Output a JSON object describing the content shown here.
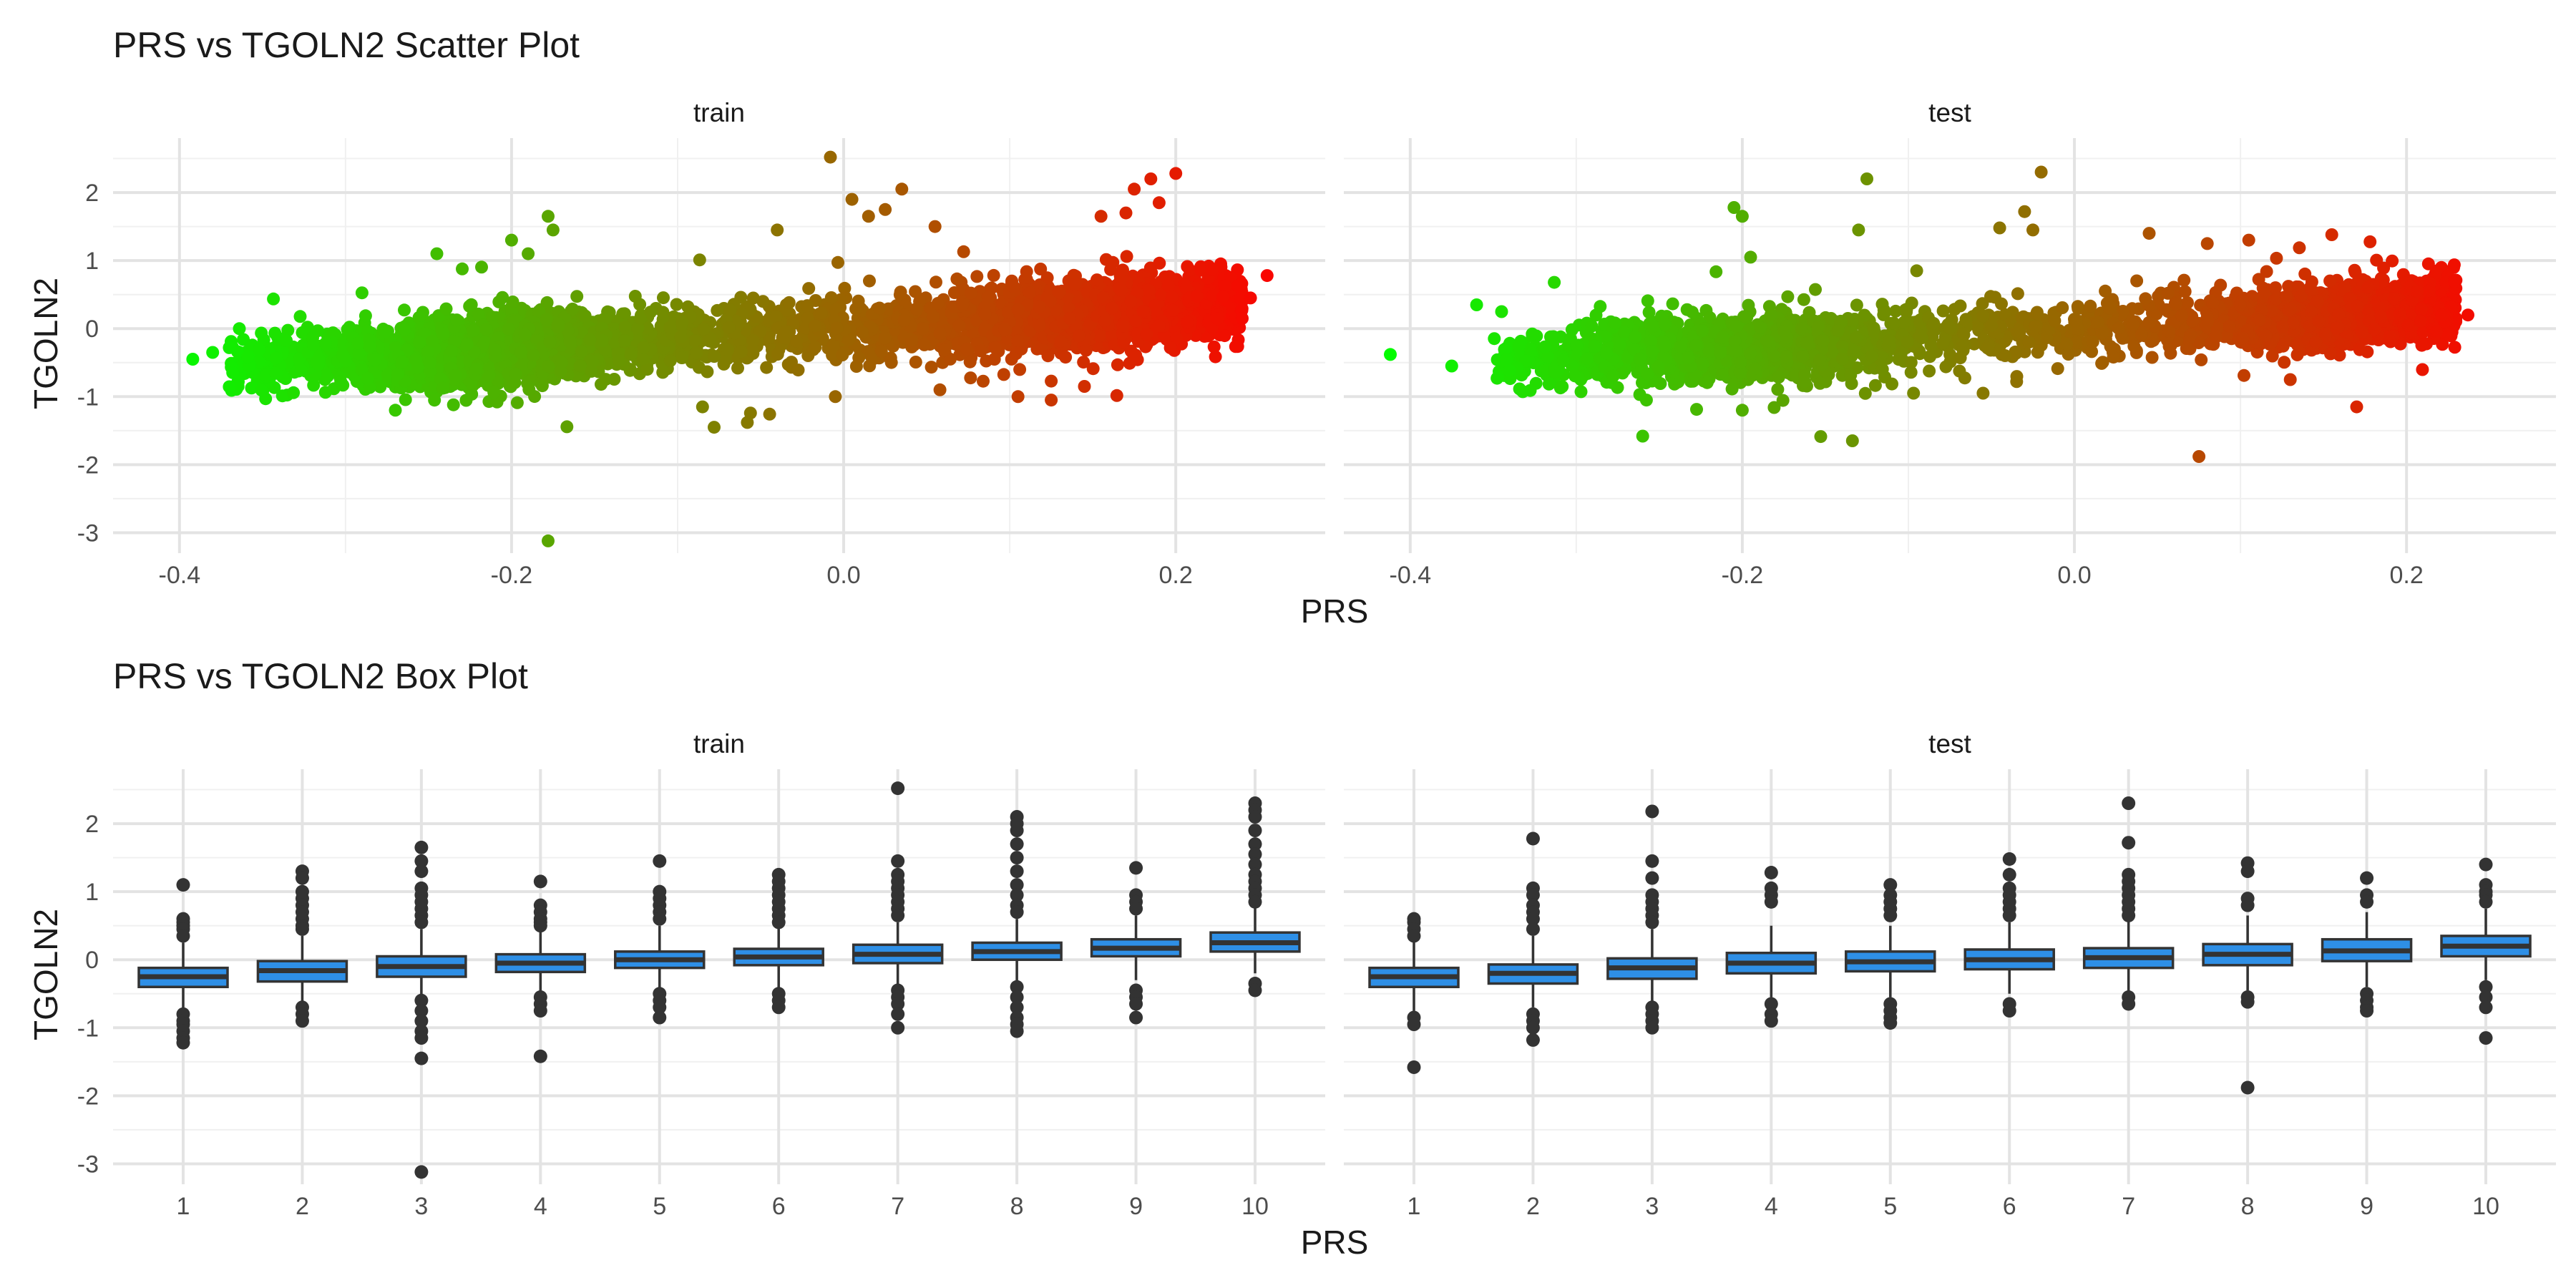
{
  "chart_data": [
    {
      "type": "scatter",
      "title": "PRS vs TGOLN2 Scatter Plot",
      "xlabel": "PRS",
      "ylabel": "TGOLN2",
      "xlim": [
        -0.44,
        0.29
      ],
      "ylim": [
        -3.3,
        2.8
      ],
      "x_ticks": [
        "-0.4",
        "-0.2",
        "0.0",
        "0.2"
      ],
      "y_ticks": [
        "2",
        "1",
        "0",
        "-1",
        "-2",
        "-3"
      ],
      "color_gradient": [
        "#00ff00",
        "#ff0000"
      ],
      "color_by": "PRS",
      "grid": true,
      "facets": [
        {
          "name": "train",
          "bulk_x_range": [
            -0.37,
            0.24
          ],
          "trend": {
            "intercept": 0.0,
            "slope": 1.6
          },
          "outliers": [
            {
              "x": -0.392,
              "y": -0.45
            },
            {
              "x": -0.38,
              "y": -0.35
            },
            {
              "x": -0.37,
              "y": -0.28
            },
            {
              "x": -0.245,
              "y": 1.1
            },
            {
              "x": -0.2,
              "y": 1.3
            },
            {
              "x": -0.178,
              "y": 1.65
            },
            {
              "x": -0.175,
              "y": 1.45
            },
            {
              "x": -0.19,
              "y": 1.1
            },
            {
              "x": -0.178,
              "y": -3.12
            },
            {
              "x": -0.27,
              "y": -1.2
            },
            {
              "x": -0.235,
              "y": -1.12
            },
            {
              "x": -0.085,
              "y": -1.15
            },
            {
              "x": -0.078,
              "y": -1.45
            },
            {
              "x": -0.058,
              "y": -1.38
            },
            {
              "x": -0.04,
              "y": 1.45
            },
            {
              "x": -0.008,
              "y": 2.52
            },
            {
              "x": 0.005,
              "y": 1.9
            },
            {
              "x": 0.015,
              "y": 1.65
            },
            {
              "x": 0.035,
              "y": 2.05
            },
            {
              "x": 0.025,
              "y": 1.75
            },
            {
              "x": 0.055,
              "y": 1.5
            },
            {
              "x": 0.058,
              "y": -0.9
            },
            {
              "x": -0.005,
              "y": -1.0
            },
            {
              "x": 0.105,
              "y": -1.0
            },
            {
              "x": 0.125,
              "y": -1.05
            },
            {
              "x": 0.145,
              "y": -0.85
            },
            {
              "x": 0.175,
              "y": 2.05
            },
            {
              "x": 0.185,
              "y": 2.2
            },
            {
              "x": 0.2,
              "y": 2.28
            },
            {
              "x": 0.17,
              "y": 1.7
            },
            {
              "x": 0.19,
              "y": 1.85
            },
            {
              "x": 0.155,
              "y": 1.65
            },
            {
              "x": 0.255,
              "y": 0.78
            },
            {
              "x": 0.245,
              "y": 0.45
            },
            {
              "x": 0.24,
              "y": 0.15
            }
          ]
        },
        {
          "name": "test",
          "bulk_x_range": [
            -0.35,
            0.23
          ],
          "trend": {
            "intercept": 0.0,
            "slope": 1.55
          },
          "outliers": [
            {
              "x": -0.412,
              "y": -0.38
            },
            {
              "x": -0.375,
              "y": -0.55
            },
            {
              "x": -0.36,
              "y": 0.35
            },
            {
              "x": -0.345,
              "y": 0.25
            },
            {
              "x": -0.26,
              "y": -1.58
            },
            {
              "x": -0.2,
              "y": -1.2
            },
            {
              "x": -0.205,
              "y": 1.78
            },
            {
              "x": -0.2,
              "y": 1.65
            },
            {
              "x": -0.195,
              "y": 1.05
            },
            {
              "x": -0.125,
              "y": 2.2
            },
            {
              "x": -0.13,
              "y": 1.45
            },
            {
              "x": -0.095,
              "y": 0.85
            },
            {
              "x": -0.02,
              "y": 2.3
            },
            {
              "x": -0.03,
              "y": 1.72
            },
            {
              "x": -0.045,
              "y": 1.48
            },
            {
              "x": -0.025,
              "y": 1.45
            },
            {
              "x": 0.045,
              "y": 1.4
            },
            {
              "x": 0.08,
              "y": 1.25
            },
            {
              "x": 0.105,
              "y": 1.3
            },
            {
              "x": 0.155,
              "y": 1.38
            },
            {
              "x": 0.075,
              "y": -1.88
            },
            {
              "x": 0.17,
              "y": -1.15
            },
            {
              "x": 0.13,
              "y": -0.75
            },
            {
              "x": 0.237,
              "y": 0.2
            }
          ]
        }
      ]
    },
    {
      "type": "box",
      "title": "PRS vs TGOLN2 Box Plot",
      "xlabel": "PRS",
      "ylabel": "TGOLN2",
      "categories": [
        "1",
        "2",
        "3",
        "4",
        "5",
        "6",
        "7",
        "8",
        "9",
        "10"
      ],
      "ylim": [
        -3.3,
        2.8
      ],
      "y_ticks": [
        "2",
        "1",
        "0",
        "-1",
        "-2",
        "-3"
      ],
      "box_color": "#2e8fe6",
      "grid": true,
      "facets": [
        {
          "name": "train",
          "boxes": [
            {
              "q1": -0.4,
              "median": -0.25,
              "q3": -0.12,
              "whisker_low": -0.75,
              "whisker_high": 0.25,
              "outliers": [
                1.1,
                0.6,
                0.55,
                0.5,
                0.45,
                0.35,
                -0.8,
                -0.9,
                -0.95,
                -1.05,
                -1.15,
                -1.22
              ]
            },
            {
              "q1": -0.32,
              "median": -0.16,
              "q3": -0.02,
              "whisker_low": -0.65,
              "whisker_high": 0.35,
              "outliers": [
                1.3,
                1.2,
                1.0,
                0.9,
                0.8,
                0.7,
                0.6,
                0.5,
                0.45,
                -0.7,
                -0.8,
                -0.9
              ]
            },
            {
              "q1": -0.25,
              "median": -0.1,
              "q3": 0.05,
              "whisker_low": -0.55,
              "whisker_high": 0.45,
              "outliers": [
                1.65,
                1.45,
                1.3,
                1.05,
                0.95,
                0.85,
                0.75,
                0.65,
                0.55,
                -0.6,
                -0.75,
                -0.9,
                -1.05,
                -1.15,
                -1.45,
                -3.12
              ]
            },
            {
              "q1": -0.18,
              "median": -0.05,
              "q3": 0.08,
              "whisker_low": -0.5,
              "whisker_high": 0.45,
              "outliers": [
                1.15,
                0.8,
                0.7,
                0.6,
                0.55,
                0.5,
                -0.55,
                -0.65,
                -0.75,
                -1.42
              ]
            },
            {
              "q1": -0.12,
              "median": 0.0,
              "q3": 0.12,
              "whisker_low": -0.45,
              "whisker_high": 0.5,
              "outliers": [
                1.45,
                1.0,
                0.9,
                0.8,
                0.7,
                0.6,
                -0.5,
                -0.6,
                -0.7,
                -0.85
              ]
            },
            {
              "q1": -0.08,
              "median": 0.04,
              "q3": 0.16,
              "whisker_low": -0.42,
              "whisker_high": 0.5,
              "outliers": [
                1.25,
                1.15,
                1.05,
                0.95,
                0.85,
                0.75,
                0.65,
                0.55,
                -0.5,
                -0.6,
                -0.7
              ]
            },
            {
              "q1": -0.05,
              "median": 0.08,
              "q3": 0.22,
              "whisker_low": -0.4,
              "whisker_high": 0.55,
              "outliers": [
                2.52,
                1.45,
                1.25,
                1.15,
                1.05,
                0.95,
                0.85,
                0.75,
                0.65,
                -0.45,
                -0.55,
                -0.65,
                -0.8,
                -1.0
              ]
            },
            {
              "q1": 0.0,
              "median": 0.12,
              "q3": 0.25,
              "whisker_low": -0.35,
              "whisker_high": 0.6,
              "outliers": [
                2.1,
                2.0,
                1.9,
                1.7,
                1.5,
                1.3,
                1.1,
                0.95,
                0.8,
                0.7,
                -0.4,
                -0.55,
                -0.7,
                -0.85,
                -0.95,
                -1.05
              ]
            },
            {
              "q1": 0.05,
              "median": 0.17,
              "q3": 0.3,
              "whisker_low": -0.3,
              "whisker_high": 0.65,
              "outliers": [
                1.35,
                0.95,
                0.85,
                0.75,
                -0.45,
                -0.55,
                -0.65,
                -0.85
              ]
            },
            {
              "q1": 0.12,
              "median": 0.25,
              "q3": 0.4,
              "whisker_low": -0.2,
              "whisker_high": 0.8,
              "outliers": [
                2.3,
                2.2,
                2.1,
                1.9,
                1.7,
                1.55,
                1.4,
                1.25,
                1.15,
                1.05,
                0.95,
                0.85,
                -0.35,
                -0.45
              ]
            }
          ]
        },
        {
          "name": "test",
          "boxes": [
            {
              "q1": -0.4,
              "median": -0.25,
              "q3": -0.12,
              "whisker_low": -0.75,
              "whisker_high": 0.3,
              "outliers": [
                0.6,
                0.55,
                0.45,
                0.35,
                -0.85,
                -0.95,
                -1.58
              ]
            },
            {
              "q1": -0.35,
              "median": -0.2,
              "q3": -0.07,
              "whisker_low": -0.7,
              "whisker_high": 0.35,
              "outliers": [
                1.78,
                1.05,
                0.95,
                0.8,
                0.7,
                0.6,
                0.45,
                -0.8,
                -0.9,
                -1.0,
                -1.18
              ]
            },
            {
              "q1": -0.28,
              "median": -0.12,
              "q3": 0.02,
              "whisker_low": -0.62,
              "whisker_high": 0.45,
              "outliers": [
                2.18,
                1.45,
                1.2,
                0.95,
                0.85,
                0.75,
                0.65,
                0.55,
                -0.7,
                -0.8,
                -0.9,
                -1.0
              ]
            },
            {
              "q1": -0.2,
              "median": -0.05,
              "q3": 0.1,
              "whisker_low": -0.55,
              "whisker_high": 0.5,
              "outliers": [
                1.28,
                1.05,
                0.95,
                0.85,
                -0.65,
                -0.8,
                -0.9
              ]
            },
            {
              "q1": -0.17,
              "median": -0.03,
              "q3": 0.12,
              "whisker_low": -0.55,
              "whisker_high": 0.5,
              "outliers": [
                1.1,
                0.95,
                0.85,
                0.75,
                0.65,
                -0.65,
                -0.75,
                -0.85,
                -0.93
              ]
            },
            {
              "q1": -0.14,
              "median": 0.0,
              "q3": 0.15,
              "whisker_low": -0.5,
              "whisker_high": 0.55,
              "outliers": [
                1.48,
                1.25,
                1.05,
                0.95,
                0.85,
                0.75,
                0.65,
                -0.65,
                -0.75
              ]
            },
            {
              "q1": -0.12,
              "median": 0.03,
              "q3": 0.17,
              "whisker_low": -0.5,
              "whisker_high": 0.6,
              "outliers": [
                2.3,
                1.72,
                1.25,
                1.15,
                1.05,
                0.95,
                0.85,
                0.75,
                0.65,
                -0.55,
                -0.65
              ]
            },
            {
              "q1": -0.08,
              "median": 0.08,
              "q3": 0.23,
              "whisker_low": -0.45,
              "whisker_high": 0.65,
              "outliers": [
                1.42,
                1.3,
                0.9,
                0.8,
                -0.55,
                -0.62,
                -1.88
              ]
            },
            {
              "q1": -0.02,
              "median": 0.13,
              "q3": 0.3,
              "whisker_low": -0.4,
              "whisker_high": 0.7,
              "outliers": [
                1.2,
                0.95,
                0.85,
                -0.5,
                -0.6,
                -0.7,
                -0.75
              ]
            },
            {
              "q1": 0.05,
              "median": 0.2,
              "q3": 0.35,
              "whisker_low": -0.3,
              "whisker_high": 0.75,
              "outliers": [
                1.4,
                1.1,
                1.0,
                0.95,
                0.85,
                -0.4,
                -0.55,
                -0.7,
                -1.15
              ]
            }
          ]
        }
      ]
    }
  ]
}
